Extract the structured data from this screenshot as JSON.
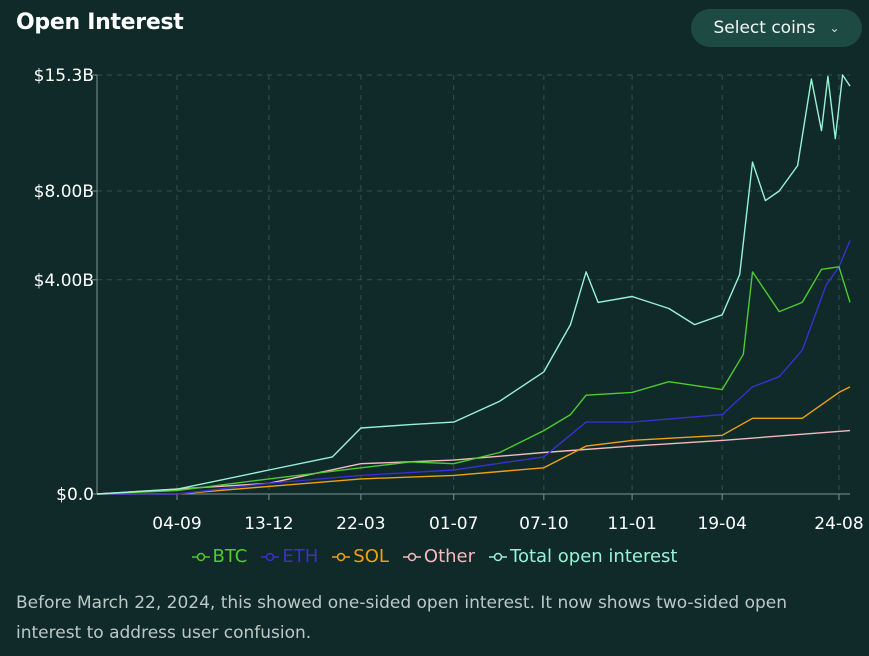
{
  "header": {
    "title": "Open Interest",
    "select_coins_label": "Select coins",
    "chevron_icon": "chevron-down-icon"
  },
  "note": "Before March 22, 2024, this showed one-sided open interest. It now shows two-sided open interest to address user confusion.",
  "colors": {
    "background": "#0f2a29",
    "grid": "#35504d",
    "axis": "#7f9491",
    "BTC": "#4ecb2e",
    "ETH": "#3b2fd0",
    "SOL": "#f0a20e",
    "Other": "#f5b9c0",
    "Total open interest": "#9af2d6"
  },
  "chart_data": {
    "type": "line",
    "title": "Open Interest",
    "xlabel": "",
    "ylabel": "",
    "x_ticks": [
      "04-09",
      "13-12",
      "22-03",
      "01-07",
      "07-10",
      "11-01",
      "19-04",
      "24-08"
    ],
    "y_ticks": [
      "$0.0",
      "$4.00B",
      "$8.00B",
      "$15.3B"
    ],
    "y_scale": "sqrt",
    "ylim": [
      0,
      15.3
    ],
    "y_unit": "billion USD",
    "grid": true,
    "legend_position": "bottom",
    "series": [
      {
        "name": "BTC",
        "x": [
          "2023-06-09",
          "2023-09-04",
          "2023-12-13",
          "2024-03-22",
          "2024-05-15",
          "2024-07-01",
          "2024-08-20",
          "2024-10-07",
          "2024-11-05",
          "2024-11-22",
          "2025-01-11",
          "2025-02-20",
          "2025-04-19",
          "2025-05-12",
          "2025-05-22",
          "2025-06-20",
          "2025-07-15",
          "2025-08-05",
          "2025-08-24",
          "2025-09-05"
        ],
        "values": [
          0.0,
          0.001,
          0.02,
          0.06,
          0.09,
          0.08,
          0.15,
          0.35,
          0.55,
          0.85,
          0.9,
          1.1,
          0.95,
          1.7,
          4.3,
          2.9,
          3.2,
          4.4,
          4.5,
          3.2
        ]
      },
      {
        "name": "ETH",
        "x": [
          "2023-06-09",
          "2023-09-04",
          "2023-12-13",
          "2024-03-22",
          "2024-07-01",
          "2024-10-07",
          "2024-11-22",
          "2025-01-11",
          "2025-04-19",
          "2025-05-22",
          "2025-06-20",
          "2025-07-15",
          "2025-08-10",
          "2025-08-24",
          "2025-09-05"
        ],
        "values": [
          0.0,
          0.0,
          0.01,
          0.03,
          0.05,
          0.12,
          0.45,
          0.45,
          0.55,
          1.0,
          1.2,
          1.8,
          3.8,
          4.5,
          5.6
        ]
      },
      {
        "name": "SOL",
        "x": [
          "2023-06-09",
          "2023-09-04",
          "2023-12-13",
          "2024-03-22",
          "2024-07-01",
          "2024-10-07",
          "2024-11-22",
          "2025-01-11",
          "2025-04-19",
          "2025-05-22",
          "2025-07-15",
          "2025-08-24",
          "2025-09-05"
        ],
        "values": [
          0.0,
          0.0,
          0.005,
          0.02,
          0.03,
          0.06,
          0.2,
          0.25,
          0.3,
          0.5,
          0.5,
          0.9,
          1.0
        ]
      },
      {
        "name": "Other",
        "x": [
          "2023-06-09",
          "2023-12-13",
          "2024-03-22",
          "2024-07-01",
          "2024-10-07",
          "2025-01-11",
          "2025-04-19",
          "2025-09-05"
        ],
        "values": [
          0.0,
          0.01,
          0.08,
          0.1,
          0.15,
          0.2,
          0.25,
          0.35
        ]
      },
      {
        "name": "Total open interest",
        "x": [
          "2023-06-09",
          "2023-09-04",
          "2023-12-13",
          "2024-02-20",
          "2024-03-22",
          "2024-05-15",
          "2024-07-01",
          "2024-08-20",
          "2024-10-07",
          "2024-11-05",
          "2024-11-22",
          "2024-12-05",
          "2025-01-11",
          "2025-02-20",
          "2025-03-20",
          "2025-04-19",
          "2025-05-08",
          "2025-05-22",
          "2025-06-05",
          "2025-06-20",
          "2025-07-10",
          "2025-07-25",
          "2025-08-05",
          "2025-08-12",
          "2025-08-20",
          "2025-08-28",
          "2025-09-05"
        ],
        "values": [
          0.0,
          0.002,
          0.05,
          0.12,
          0.38,
          0.42,
          0.45,
          0.75,
          1.3,
          2.5,
          4.3,
          3.2,
          3.4,
          3.0,
          2.5,
          2.8,
          4.2,
          9.6,
          7.5,
          8.0,
          9.4,
          15.0,
          11.5,
          15.2,
          11.0,
          15.3,
          14.5
        ]
      }
    ]
  }
}
